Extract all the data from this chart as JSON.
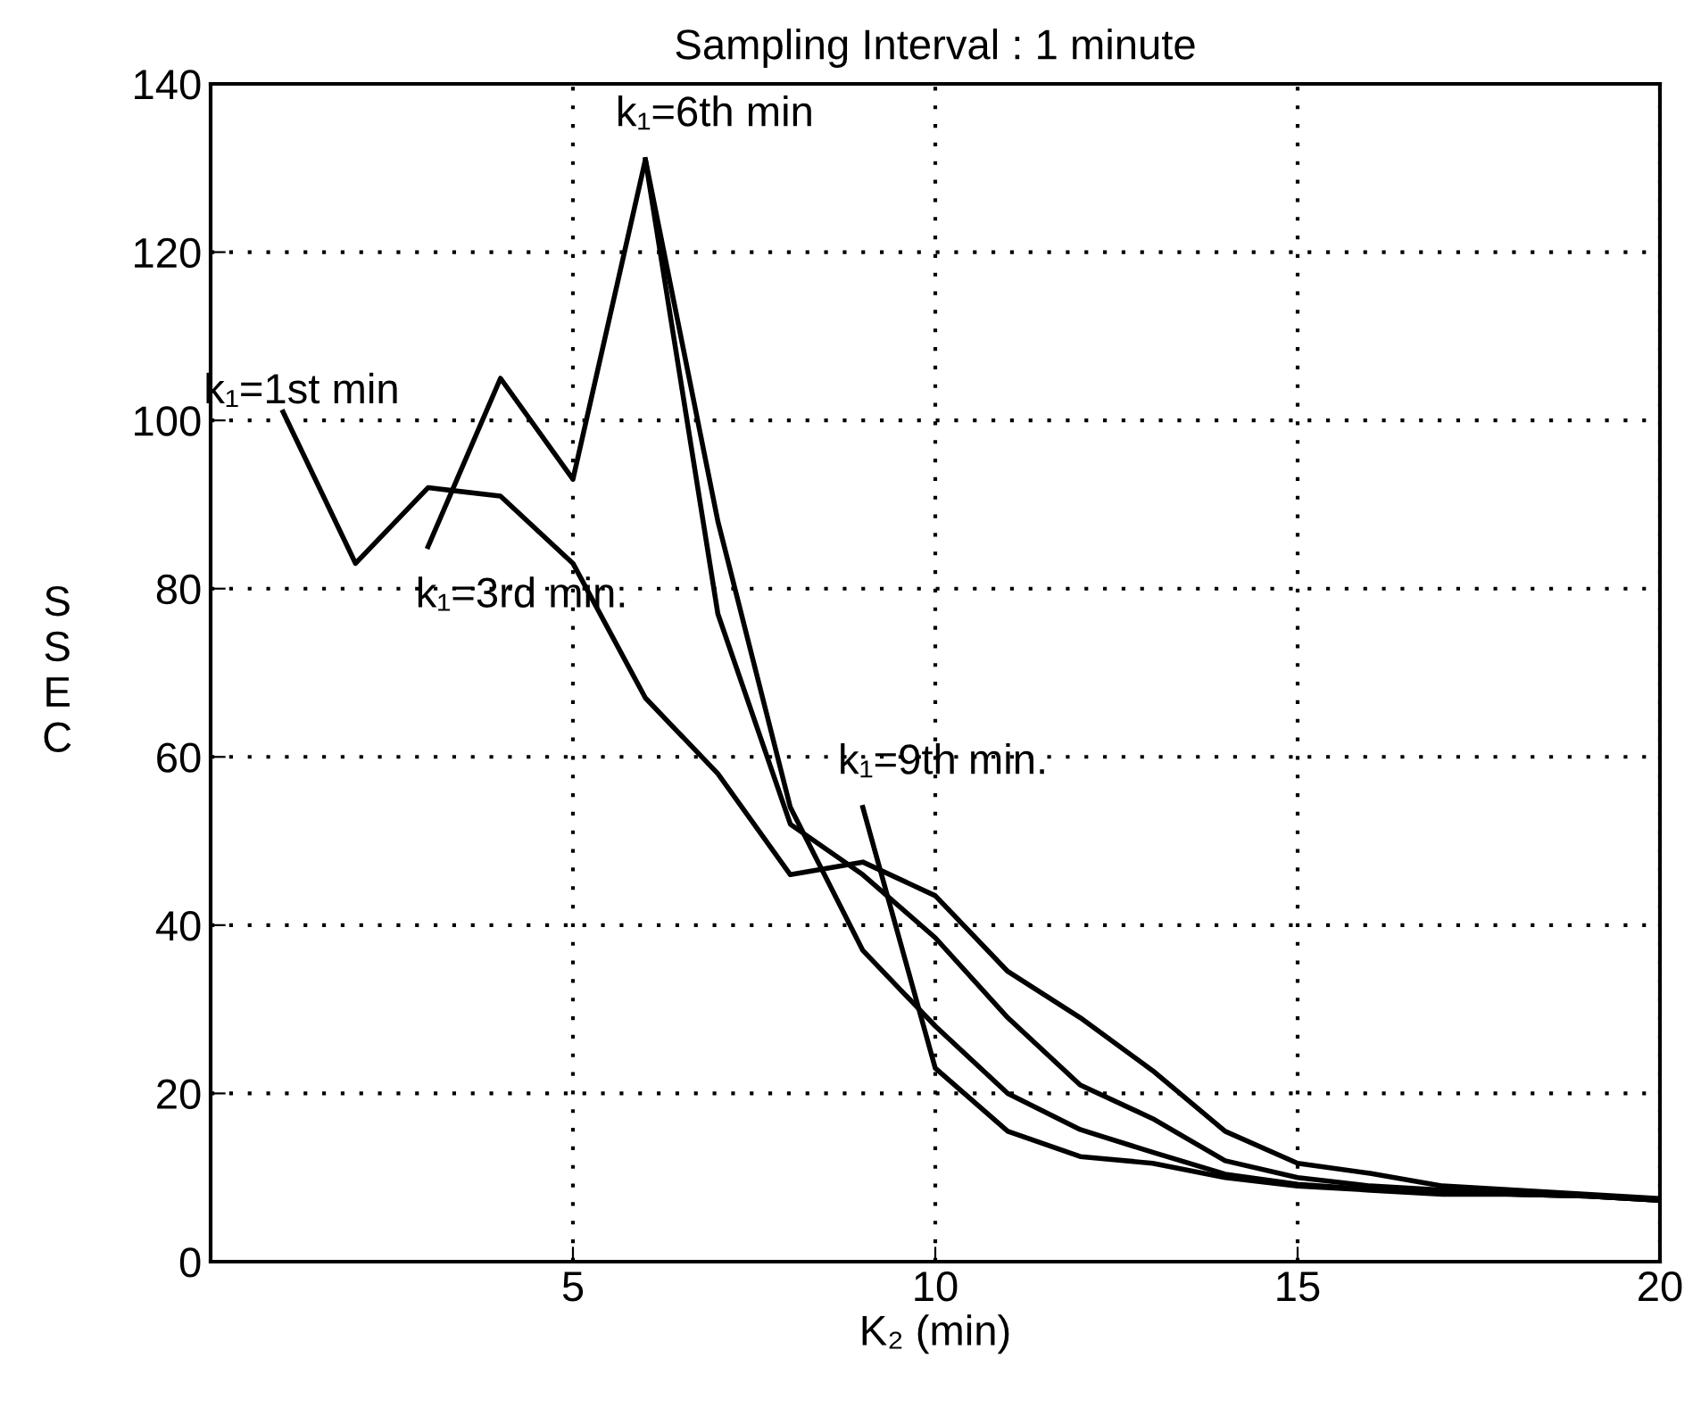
{
  "chart_data": {
    "type": "line",
    "title": "Sampling Interval : 1 minute",
    "xlabel": "K₂ (min)",
    "ylabel": "SSEC",
    "xlim": [
      0,
      20
    ],
    "ylim": [
      0,
      140
    ],
    "xticks": [
      5,
      10,
      15,
      20
    ],
    "yticks": [
      0,
      20,
      40,
      60,
      80,
      100,
      120,
      140
    ],
    "grid": true,
    "line_style": "solid",
    "series": [
      {
        "color": "#000000",
        "x": [
          1,
          2,
          3,
          4,
          5,
          6,
          7,
          8,
          9,
          10,
          11,
          12,
          13,
          14,
          15,
          16,
          17,
          18,
          19,
          20
        ],
        "values": [
          101,
          83,
          92,
          91,
          83,
          67,
          58,
          46,
          47.5,
          43.5,
          34.5,
          29,
          22.7,
          15.5,
          11.7,
          10.5,
          9,
          8.5,
          8,
          7.5
        ]
      },
      {
        "color": "#000000",
        "x": [
          3,
          4,
          5,
          6,
          7,
          8,
          9,
          10,
          11,
          12,
          13,
          14,
          15,
          16,
          17,
          18,
          19,
          20
        ],
        "values": [
          85,
          105,
          93,
          131,
          88,
          54,
          37,
          28,
          20,
          15.7,
          13,
          10.4,
          9.2,
          8.6,
          8.2,
          8,
          7.8,
          7.3
        ]
      },
      {
        "color": "#000000",
        "x": [
          6,
          7,
          8,
          9,
          10,
          11,
          12,
          13,
          14,
          15,
          16,
          17,
          18,
          19,
          20
        ],
        "values": [
          131,
          77,
          52,
          46,
          38.5,
          29,
          21,
          17,
          12,
          10,
          9,
          8.5,
          8,
          7.8,
          7.3
        ]
      },
      {
        "color": "#000000",
        "x": [
          9,
          10,
          11,
          12,
          13,
          14,
          15,
          16,
          17,
          18,
          19,
          20
        ],
        "values": [
          54,
          23,
          15.5,
          12.5,
          11.7,
          10,
          9,
          8.5,
          8,
          8,
          7.8,
          7.3
        ]
      }
    ],
    "annotations": [
      {
        "text": "k₁=1st min",
        "x": 1,
        "y": 101
      },
      {
        "text": "k₁=3rd min.",
        "x": 3,
        "y": 85
      },
      {
        "text": "k₁=6th min",
        "x": 6,
        "y": 131
      },
      {
        "text": "k₁=9th min.",
        "x": 9,
        "y": 54
      }
    ]
  }
}
